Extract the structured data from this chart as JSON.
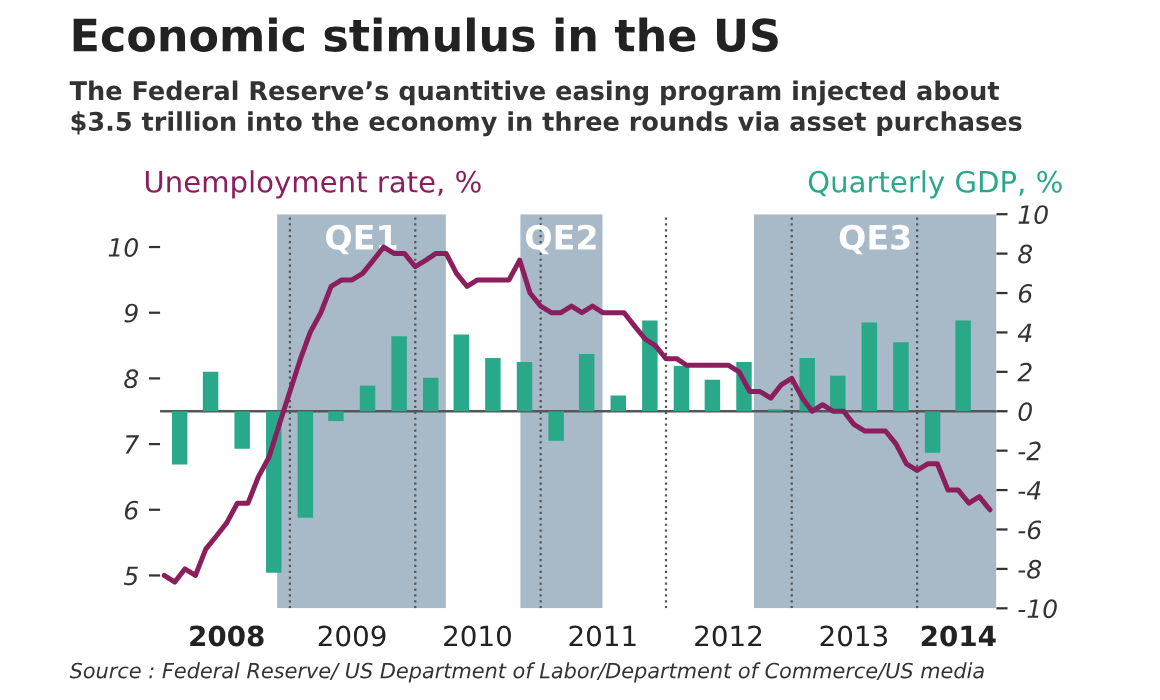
{
  "chart_data": {
    "type": "line",
    "title": "Economic stimulus in the US",
    "subtitle": "The Federal Reserve’s quantitive easing program injected about\n$3.5 trillion into the economy in three rounds via asset purchases",
    "ylabel": "Unemployment rate, %",
    "y2label": "Quarterly GDP, %",
    "annotations": [
      "Source : Federal Reserve/ US Department of Labor/Department of Commerce/US media"
    ],
    "xlim": [
      "2007-12-20",
      "2014-08-20"
    ],
    "xticks": [
      {
        "value": "2008-07-01",
        "label": "2008"
      },
      {
        "value": "2009-07-01",
        "label": "2009"
      },
      {
        "value": "2010-07-01",
        "label": "2010"
      },
      {
        "value": "2011-07-01",
        "label": "2011"
      },
      {
        "value": "2012-07-01",
        "label": "2012"
      },
      {
        "value": "2013-07-01",
        "label": "2013"
      },
      {
        "value": "2014-05-01",
        "label": "2014"
      }
    ],
    "ylim": [
      4.5,
      10.5
    ],
    "yticks": [
      5,
      6,
      7,
      8,
      9,
      10
    ],
    "y2lim": [
      -10,
      10
    ],
    "y2ticks": [
      -10,
      -8,
      -6,
      -4,
      -2,
      0,
      2,
      4,
      6,
      8,
      10
    ],
    "grid": false,
    "marker": "none",
    "line_style": "solid",
    "bands": [
      {
        "axis": "x",
        "from": "2008-11-25",
        "to": "2010-03-31",
        "label": "QE1",
        "color": "#a8b9c7"
      },
      {
        "axis": "x",
        "from": "2010-11-03",
        "to": "2011-06-30",
        "label": "QE2",
        "color": "#a8b9c7"
      },
      {
        "axis": "x",
        "from": "2012-09-13",
        "to": "2014-08-20",
        "label": "QE3",
        "color": "#a8b9c7"
      }
    ],
    "ref_lines": [
      {
        "axis": "y2",
        "value": 0,
        "color": "#555555",
        "line_style": "solid"
      },
      {
        "axis": "x",
        "value": "2009-01-01",
        "color": "#555555",
        "line_style": "dotted"
      },
      {
        "axis": "x",
        "value": "2010-01-01",
        "color": "#555555",
        "line_style": "dotted"
      },
      {
        "axis": "x",
        "value": "2011-01-01",
        "color": "#555555",
        "line_style": "dotted"
      },
      {
        "axis": "x",
        "value": "2012-01-01",
        "color": "#555555",
        "line_style": "dotted"
      },
      {
        "axis": "x",
        "value": "2013-01-01",
        "color": "#555555",
        "line_style": "dotted"
      },
      {
        "axis": "x",
        "value": "2014-01-01",
        "color": "#555555",
        "line_style": "dotted"
      }
    ],
    "series": [
      {
        "type": "bar",
        "axis": "y2",
        "color": "#2aa88a",
        "x": [
          "2008-02-15",
          "2008-05-15",
          "2008-08-15",
          "2008-11-15",
          "2009-02-15",
          "2009-05-15",
          "2009-08-15",
          "2009-11-15",
          "2010-02-15",
          "2010-05-15",
          "2010-08-15",
          "2010-11-15",
          "2011-02-15",
          "2011-05-15",
          "2011-08-15",
          "2011-11-15",
          "2012-02-15",
          "2012-05-15",
          "2012-08-15",
          "2012-11-15",
          "2013-02-15",
          "2013-05-15",
          "2013-08-15",
          "2013-11-15",
          "2014-02-15",
          "2014-05-15"
        ],
        "values": [
          -2.7,
          2.0,
          -1.9,
          -8.2,
          -5.4,
          -0.5,
          1.3,
          3.8,
          1.7,
          3.9,
          2.7,
          2.5,
          -1.5,
          2.9,
          0.8,
          4.6,
          2.3,
          1.6,
          2.5,
          0.1,
          2.7,
          1.8,
          4.5,
          3.5,
          -2.1,
          4.6
        ]
      },
      {
        "axis": "y",
        "color": "#8b1f5e",
        "x": [
          "2008-01",
          "2008-02",
          "2008-03",
          "2008-04",
          "2008-05",
          "2008-06",
          "2008-07",
          "2008-08",
          "2008-09",
          "2008-10",
          "2008-11",
          "2008-12",
          "2009-01",
          "2009-02",
          "2009-03",
          "2009-04",
          "2009-05",
          "2009-06",
          "2009-07",
          "2009-08",
          "2009-09",
          "2009-10",
          "2009-11",
          "2009-12",
          "2010-01",
          "2010-02",
          "2010-03",
          "2010-04",
          "2010-05",
          "2010-06",
          "2010-07",
          "2010-08",
          "2010-09",
          "2010-10",
          "2010-11",
          "2010-12",
          "2011-01",
          "2011-02",
          "2011-03",
          "2011-04",
          "2011-05",
          "2011-06",
          "2011-07",
          "2011-08",
          "2011-09",
          "2011-10",
          "2011-11",
          "2011-12",
          "2012-01",
          "2012-02",
          "2012-03",
          "2012-04",
          "2012-05",
          "2012-06",
          "2012-07",
          "2012-08",
          "2012-09",
          "2012-10",
          "2012-11",
          "2012-12",
          "2013-01",
          "2013-02",
          "2013-03",
          "2013-04",
          "2013-05",
          "2013-06",
          "2013-07",
          "2013-08",
          "2013-09",
          "2013-10",
          "2013-11",
          "2013-12",
          "2014-01",
          "2014-02",
          "2014-03",
          "2014-04",
          "2014-05",
          "2014-06",
          "2014-07",
          "2014-08"
        ],
        "values": [
          5.0,
          4.9,
          5.1,
          5.0,
          5.4,
          5.6,
          5.8,
          6.1,
          6.1,
          6.5,
          6.8,
          7.3,
          7.8,
          8.3,
          8.7,
          9.0,
          9.4,
          9.5,
          9.5,
          9.6,
          9.8,
          10.0,
          9.9,
          9.9,
          9.7,
          9.8,
          9.9,
          9.9,
          9.6,
          9.4,
          9.5,
          9.5,
          9.5,
          9.5,
          9.8,
          9.3,
          9.1,
          9.0,
          9.0,
          9.1,
          9.0,
          9.1,
          9.0,
          9.0,
          9.0,
          8.8,
          8.6,
          8.5,
          8.3,
          8.3,
          8.2,
          8.2,
          8.2,
          8.2,
          8.2,
          8.1,
          7.8,
          7.8,
          7.7,
          7.9,
          8.0,
          7.7,
          7.5,
          7.6,
          7.5,
          7.5,
          7.3,
          7.2,
          7.2,
          7.2,
          7.0,
          6.7,
          6.6,
          6.7,
          6.7,
          6.3,
          6.3,
          6.1,
          6.2,
          6.0
        ]
      }
    ]
  }
}
